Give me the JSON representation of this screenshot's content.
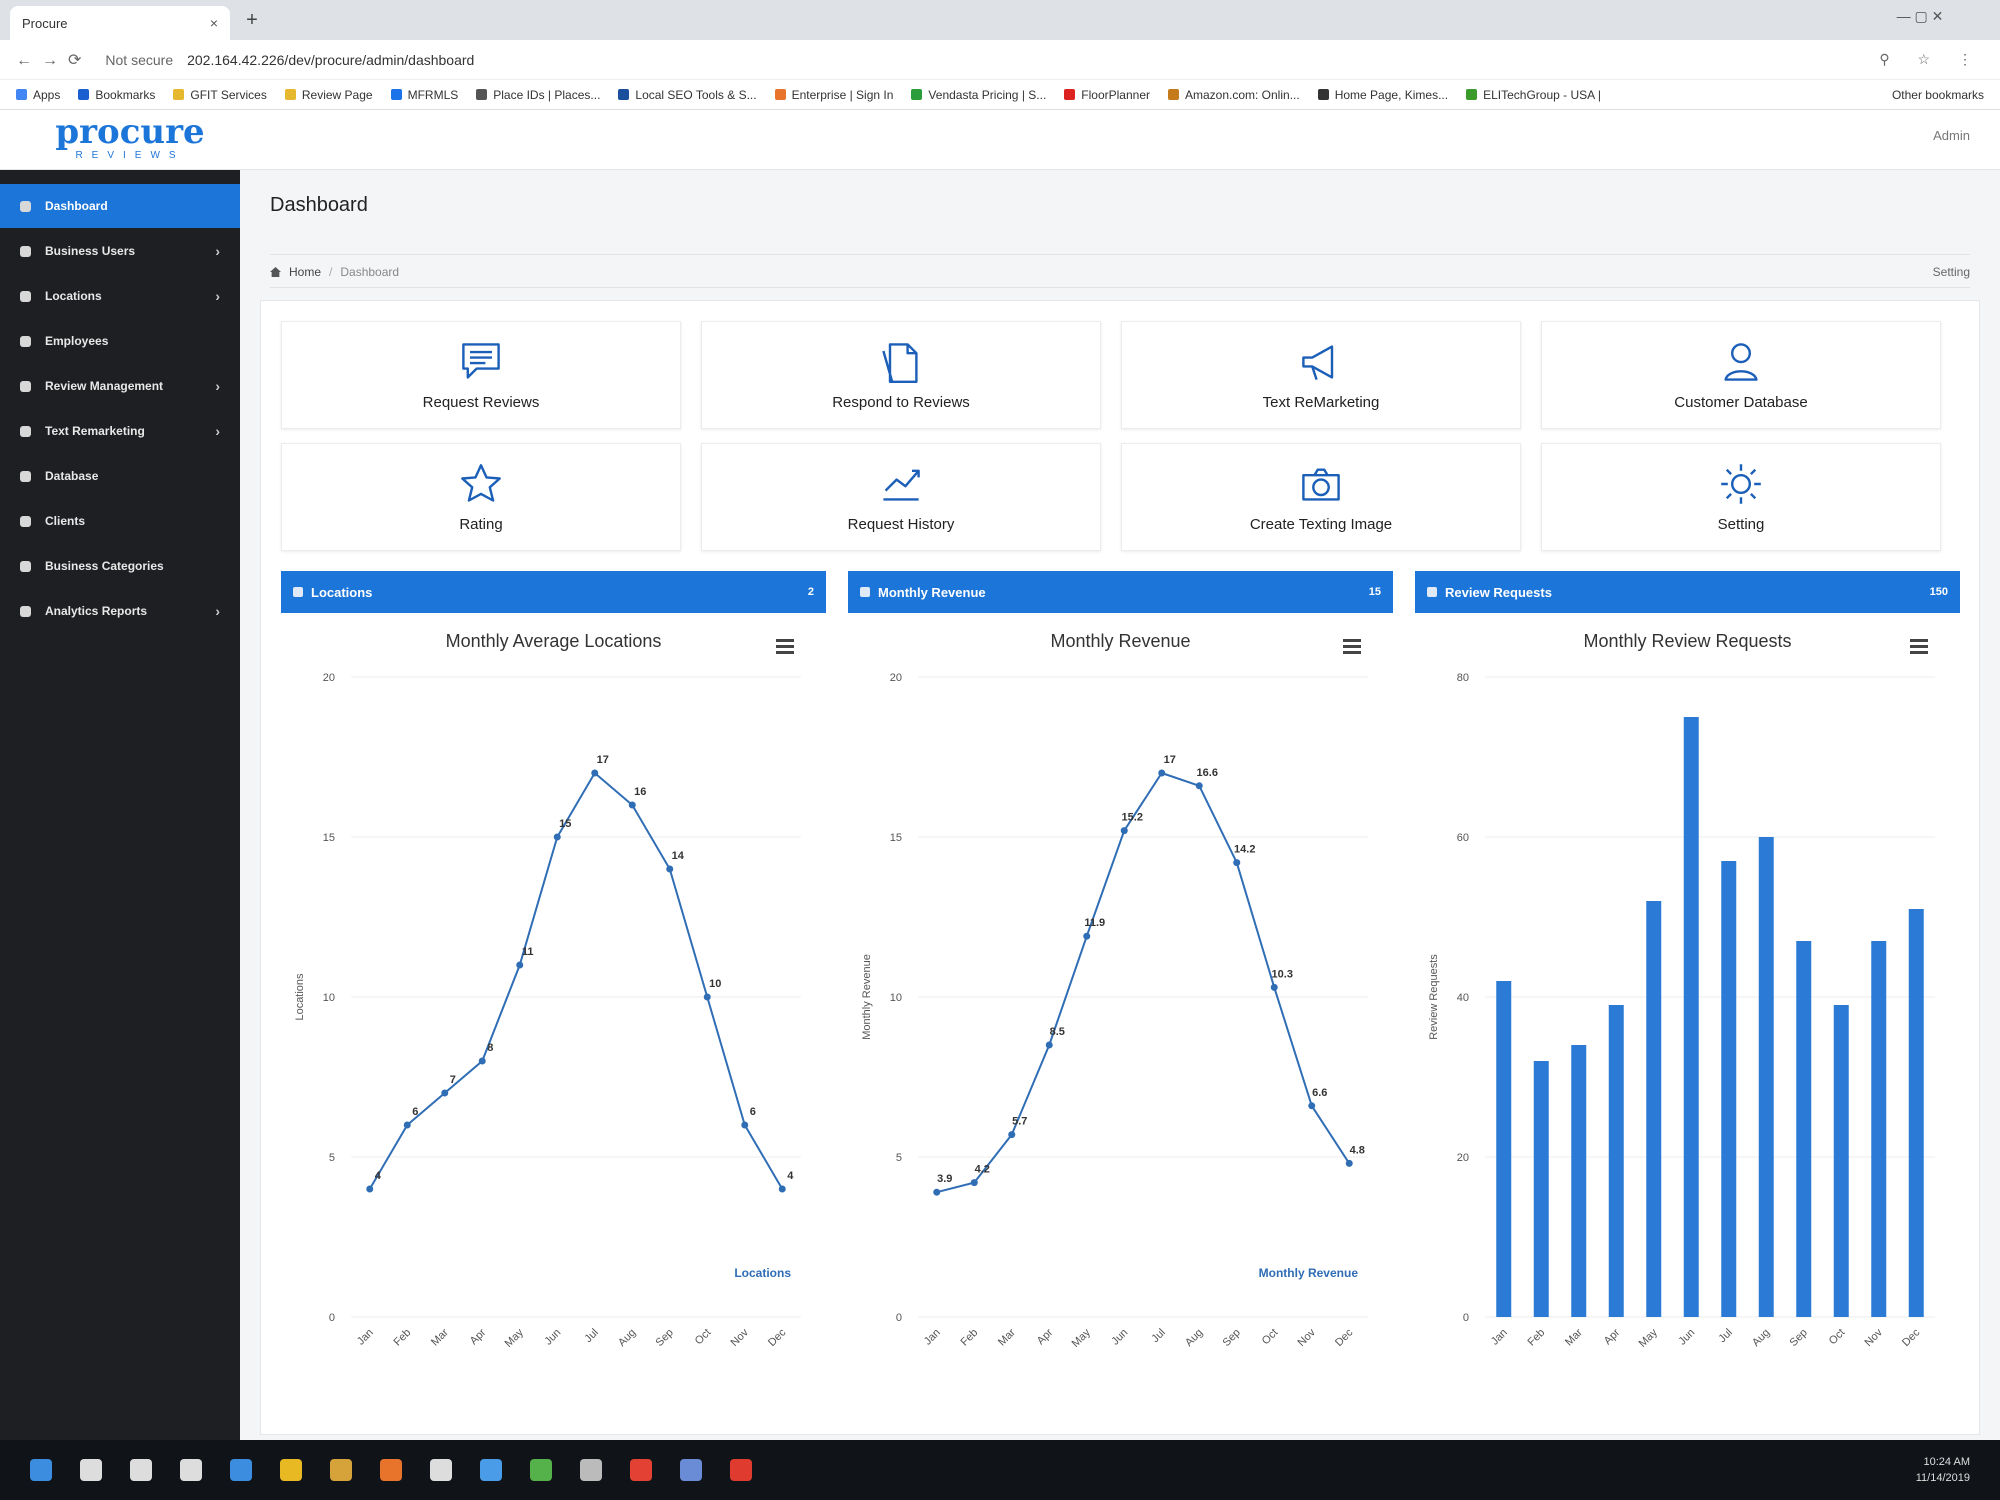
{
  "browser": {
    "tab_title": "Procure",
    "security": "Not secure",
    "url": "202.164.42.226/dev/procure/admin/dashboard",
    "bookmarks": [
      "Apps",
      "Bookmarks",
      "GFIT Services",
      "Review Page",
      "MFRMLS",
      "Place IDs | Places...",
      "Local SEO Tools & S...",
      "Enterprise | Sign In",
      "Vendasta Pricing | S...",
      "FloorPlanner",
      "Amazon.com: Onlin...",
      "Home Page, Kimes...",
      "ELITechGroup - USA |"
    ],
    "other_bookmarks": "Other bookmarks"
  },
  "header": {
    "logo": "procure",
    "logo_sub": "REVIEWS",
    "user": "Admin"
  },
  "sidebar": {
    "items": [
      {
        "label": "Dashboard",
        "submenu": false
      },
      {
        "label": "Business Users",
        "submenu": true
      },
      {
        "label": "Locations",
        "submenu": true
      },
      {
        "label": "Employees",
        "submenu": false
      },
      {
        "label": "Review Management",
        "submenu": true
      },
      {
        "label": "Text Remarketing",
        "submenu": true
      },
      {
        "label": "Database",
        "submenu": false
      },
      {
        "label": "Clients",
        "submenu": false
      },
      {
        "label": "Business Categories",
        "submenu": false
      },
      {
        "label": "Analytics Reports",
        "submenu": true
      }
    ]
  },
  "page": {
    "title": "Dashboard",
    "breadcrumb": [
      "Home",
      "Dashboard"
    ],
    "setting": "Setting"
  },
  "tiles": [
    "Request Reviews",
    "Respond to Reviews",
    "Text ReMarketing",
    "Customer Database",
    "Rating",
    "Request History",
    "Create Texting Image",
    "Setting"
  ],
  "panels": [
    {
      "label": "Locations",
      "count": 2
    },
    {
      "label": "Monthly Revenue",
      "count": 15
    },
    {
      "label": "Review Requests",
      "count": 150
    }
  ],
  "chart_data": [
    {
      "type": "line",
      "title": "Monthly Average Locations",
      "y_label": "Locations",
      "categories": [
        "Jan",
        "Feb",
        "Mar",
        "Apr",
        "May",
        "Jun",
        "Jul",
        "Aug",
        "Sep",
        "Oct",
        "Nov",
        "Dec"
      ],
      "series": [
        {
          "name": "Locations",
          "color": "#2f6db5",
          "values": [
            4,
            6,
            7,
            8,
            11,
            15,
            17,
            16,
            14,
            10,
            6,
            4
          ]
        }
      ],
      "ylim": [
        0,
        20
      ],
      "yticks": [
        0,
        5,
        10,
        15,
        20
      ],
      "grid": true
    },
    {
      "type": "line",
      "title": "Monthly Revenue",
      "y_label": "Monthly Revenue",
      "categories": [
        "Jan",
        "Feb",
        "Mar",
        "Apr",
        "May",
        "Jun",
        "Jul",
        "Aug",
        "Sep",
        "Oct",
        "Nov",
        "Dec"
      ],
      "series": [
        {
          "name": "Monthly Revenue",
          "color": "#2f6db5",
          "values": [
            3.9,
            4.2,
            5.7,
            8.5,
            11.9,
            15.2,
            17,
            16.6,
            14.2,
            10.3,
            6.6,
            4.8
          ]
        }
      ],
      "ylim": [
        0,
        20
      ],
      "yticks": [
        0,
        5,
        10,
        15,
        20
      ],
      "grid": true
    },
    {
      "type": "bar",
      "title": "Monthly Review Requests",
      "y_label": "Review Requests",
      "categories": [
        "Jan",
        "Feb",
        "Mar",
        "Apr",
        "May",
        "Jun",
        "Jul",
        "Aug",
        "Sep",
        "Oct",
        "Nov",
        "Dec"
      ],
      "series": [
        {
          "color": "#2b7bd6",
          "values": [
            42,
            32,
            34,
            39,
            52,
            75,
            57,
            60,
            47,
            39,
            47,
            51
          ]
        }
      ],
      "ylim": [
        0,
        80
      ],
      "yticks": [
        0,
        20,
        40,
        60,
        80
      ],
      "grid": true
    }
  ],
  "taskbar": {
    "time": "10:24 AM",
    "date": "11/14/2019"
  }
}
